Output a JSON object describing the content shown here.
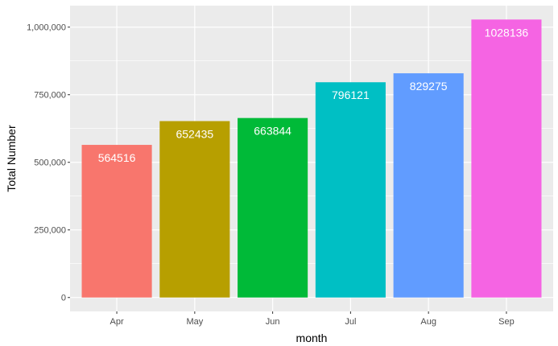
{
  "chart_data": {
    "type": "bar",
    "categories": [
      "Apr",
      "May",
      "Jun",
      "Jul",
      "Aug",
      "Sep"
    ],
    "values": [
      564516,
      652435,
      663844,
      796121,
      829275,
      1028136
    ],
    "data_labels": [
      "564516",
      "652435",
      "663844",
      "796121",
      "829275",
      "1028136"
    ],
    "colors": [
      "#F8766D",
      "#B79F00",
      "#00BA38",
      "#00BFC4",
      "#619CFF",
      "#F564E3"
    ],
    "xlabel": "month",
    "ylabel": "Total Number",
    "yticks": [
      0,
      250000,
      500000,
      750000,
      1000000
    ],
    "ytick_labels": [
      "0",
      "250,000",
      "500,000",
      "750,000",
      "1,000,000"
    ],
    "ylim": [
      -51400,
      1079500
    ],
    "grid": true,
    "panel_background": "#EBEBEB",
    "grid_color": "#FFFFFF"
  }
}
